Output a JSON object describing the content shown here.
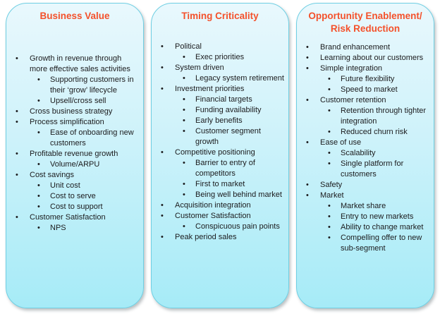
{
  "bullet_char": "•",
  "colors": {
    "title": "#f4512b",
    "body_text": "#1b1b1d",
    "panel_border": "#6fcfe3",
    "panel_top": "#e9f8fd",
    "panel_bottom": "#a6ebf7"
  },
  "panels": [
    {
      "title": "Business Value",
      "items": [
        {
          "level": 1,
          "text": "Growth in revenue through more effective sales activities"
        },
        {
          "level": 2,
          "text": "Supporting customers in their ‘grow’ lifecycle"
        },
        {
          "level": 2,
          "text": "Upsell/cross sell"
        },
        {
          "level": 1,
          "text": "Cross business strategy"
        },
        {
          "level": 1,
          "text": "Process simplification"
        },
        {
          "level": 2,
          "text": "Ease of onboarding new customers"
        },
        {
          "level": 1,
          "text": "Profitable revenue growth"
        },
        {
          "level": 2,
          "text": "Volume/ARPU"
        },
        {
          "level": 1,
          "text": "Cost savings"
        },
        {
          "level": 2,
          "text": "Unit cost"
        },
        {
          "level": 2,
          "text": "Cost to serve"
        },
        {
          "level": 2,
          "text": "Cost to support"
        },
        {
          "level": 1,
          "text": "Customer Satisfaction"
        },
        {
          "level": 2,
          "text": "NPS"
        }
      ]
    },
    {
      "title": "Timing Criticality",
      "items": [
        {
          "level": 1,
          "text": "Political"
        },
        {
          "level": 2,
          "text": "Exec priorities"
        },
        {
          "level": 1,
          "text": "System driven"
        },
        {
          "level": 2,
          "text": "Legacy system retirement"
        },
        {
          "level": 1,
          "text": "Investment priorities"
        },
        {
          "level": 2,
          "text": "Financial targets"
        },
        {
          "level": 2,
          "text": "Funding availability"
        },
        {
          "level": 2,
          "text": "Early benefits"
        },
        {
          "level": 2,
          "text": "Customer segment growth"
        },
        {
          "level": 1,
          "text": "Competitive positioning"
        },
        {
          "level": 2,
          "text": "Barrier to entry of competitors"
        },
        {
          "level": 2,
          "text": "First to market"
        },
        {
          "level": 2,
          "text": "Being well behind market"
        },
        {
          "level": 1,
          "text": "Acquisition integration"
        },
        {
          "level": 1,
          "text": "Customer Satisfaction"
        },
        {
          "level": 2,
          "text": "Conspicuous pain points"
        },
        {
          "level": 1,
          "text": "Peak period sales"
        }
      ]
    },
    {
      "title": "Opportunity Enablement/ Risk Reduction",
      "items": [
        {
          "level": 1,
          "text": "Brand enhancement"
        },
        {
          "level": 1,
          "text": "Learning about our customers"
        },
        {
          "level": 1,
          "text": "Simple integration"
        },
        {
          "level": 2,
          "text": "Future flexibility"
        },
        {
          "level": 2,
          "text": "Speed to market"
        },
        {
          "level": 1,
          "text": "Customer retention"
        },
        {
          "level": 2,
          "text": "Retention through tighter integration"
        },
        {
          "level": 2,
          "text": "Reduced churn risk"
        },
        {
          "level": 1,
          "text": "Ease of use"
        },
        {
          "level": 2,
          "text": "Scalability"
        },
        {
          "level": 2,
          "text": "Single platform for customers"
        },
        {
          "level": 1,
          "text": "Safety"
        },
        {
          "level": 1,
          "text": "Market"
        },
        {
          "level": 2,
          "text": "Market share"
        },
        {
          "level": 2,
          "text": "Entry to new markets"
        },
        {
          "level": 2,
          "text": "Ability to change market"
        },
        {
          "level": 2,
          "text": "Compelling offer to new sub-segment"
        }
      ]
    }
  ]
}
